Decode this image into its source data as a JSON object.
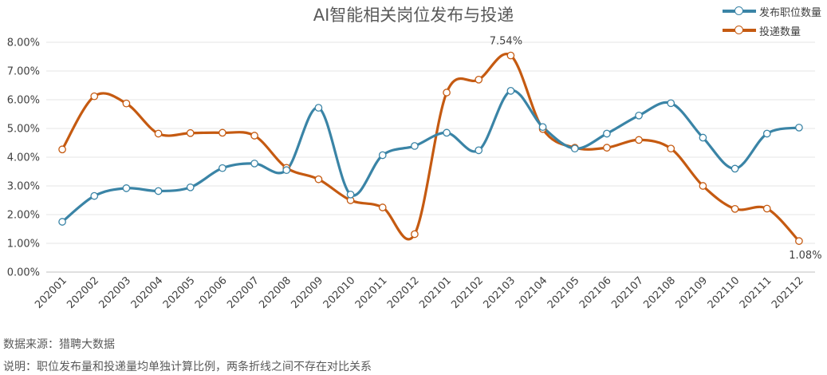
{
  "chart_data": {
    "type": "line",
    "title": "AI智能相关岗位发布与投递",
    "categories": [
      "202001",
      "202002",
      "202003",
      "202004",
      "202005",
      "202006",
      "202007",
      "202008",
      "202009",
      "202010",
      "202011",
      "202012",
      "202101",
      "202102",
      "202103",
      "202104",
      "202105",
      "202106",
      "202107",
      "202108",
      "202109",
      "202110",
      "202111",
      "202112"
    ],
    "y_ticks": [
      "0.00%",
      "1.00%",
      "2.00%",
      "3.00%",
      "4.00%",
      "5.00%",
      "6.00%",
      "7.00%",
      "8.00%"
    ],
    "ylim": [
      0,
      8
    ],
    "legend_position": "top-right",
    "series": [
      {
        "name": "发布职位数量",
        "color": "#3a84a6",
        "values": [
          1.75,
          2.65,
          2.92,
          2.82,
          2.95,
          3.62,
          3.78,
          3.55,
          5.72,
          2.7,
          4.07,
          4.39,
          4.85,
          4.24,
          6.31,
          5.05,
          4.3,
          4.82,
          5.45,
          5.88,
          4.68,
          3.6,
          4.82,
          5.03
        ]
      },
      {
        "name": "投递数量",
        "color": "#c55a11",
        "values": [
          4.27,
          6.12,
          5.87,
          4.82,
          4.84,
          4.85,
          4.75,
          3.63,
          3.23,
          2.5,
          2.25,
          1.32,
          6.25,
          6.7,
          7.54,
          4.98,
          4.33,
          4.33,
          4.6,
          4.3,
          3.0,
          2.2,
          2.21,
          1.08
        ]
      }
    ],
    "annotations": [
      {
        "series": 1,
        "index": 14,
        "text": "7.54%"
      },
      {
        "series": 1,
        "index": 23,
        "text": "1.08%"
      }
    ]
  },
  "footnotes": {
    "source": "数据来源：猎聘大数据",
    "note": "说明：职位发布量和投递量均单独计算比例，两条折线之间不存在对比关系"
  }
}
